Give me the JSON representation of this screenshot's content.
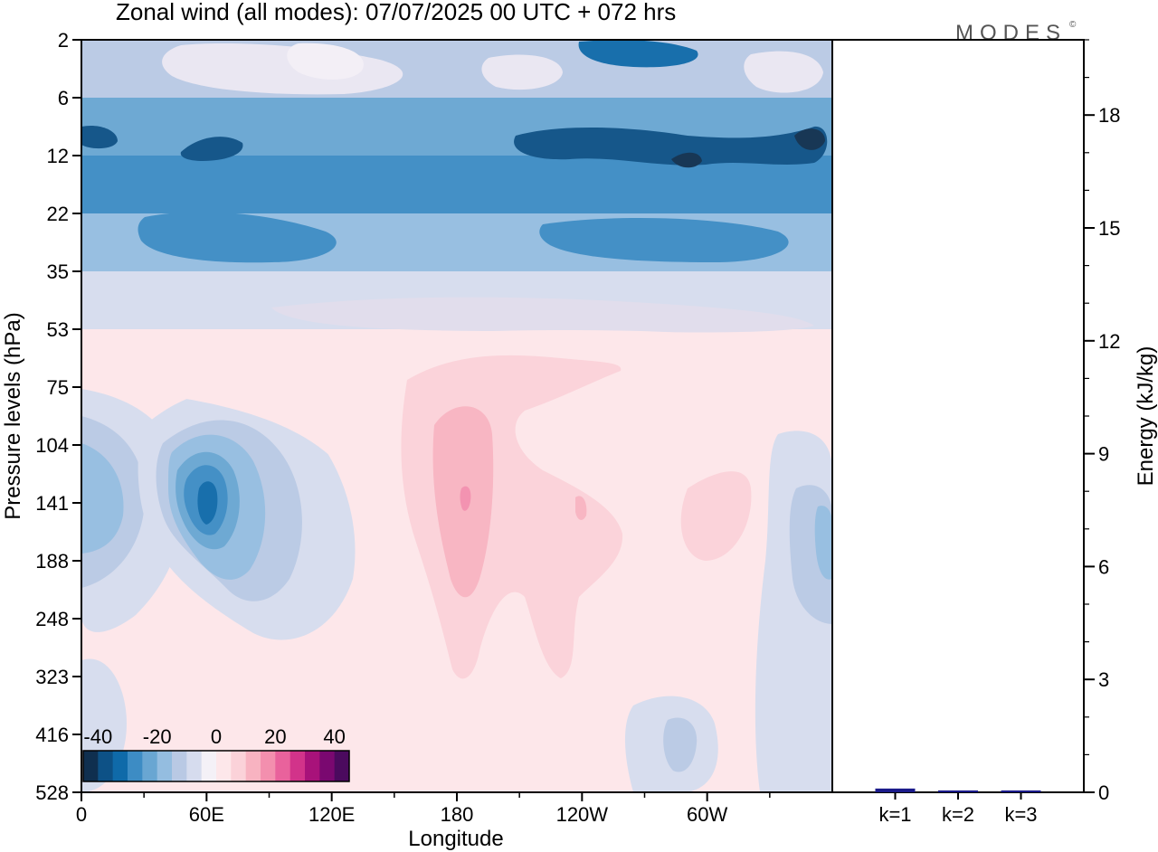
{
  "title": "Zonal wind (all modes):  07/07/2025  00 UTC  + 072 hrs",
  "brand": "MODES",
  "brand_mark": "©",
  "chart_data": [
    {
      "type": "heatmap",
      "name": "zonal-wind-cross-section",
      "xlabel": "Longitude",
      "ylabel": "Pressure levels (hPa)",
      "xticks": [
        {
          "lon": 0,
          "label": "0"
        },
        {
          "lon": 60,
          "label": "60E"
        },
        {
          "lon": 120,
          "label": "120E"
        },
        {
          "lon": 180,
          "label": "180"
        },
        {
          "lon": 240,
          "label": "120W"
        },
        {
          "lon": 300,
          "label": "60W"
        }
      ],
      "xlim": [
        0,
        360
      ],
      "yticks": [
        2,
        6,
        12,
        22,
        35,
        53,
        75,
        104,
        141,
        188,
        248,
        323,
        416,
        528
      ],
      "colorbar": {
        "labels": [
          "-40",
          "-20",
          "0",
          "20",
          "40"
        ],
        "levels": [
          -40,
          -35,
          -30,
          -25,
          -20,
          -15,
          -10,
          -5,
          0,
          5,
          10,
          15,
          20,
          25,
          30,
          35,
          40
        ],
        "colors": [
          "#0f2f4f",
          "#0d5186",
          "#0f6aa9",
          "#3d8cc4",
          "#69a6d2",
          "#94bde0",
          "#b9c9e4",
          "#d6dcee",
          "#f4f1f7",
          "#fde7ea",
          "#fbd2d9",
          "#f8b3c1",
          "#f38fae",
          "#e9629c",
          "#d2338a",
          "#a8127a",
          "#7a0870",
          "#4b0a5e"
        ]
      },
      "field_bands": [
        {
          "level_from": 2,
          "level_to": 6,
          "value": -12
        },
        {
          "level_from": 6,
          "level_to": 12,
          "value": -25
        },
        {
          "level_from": 12,
          "level_to": 22,
          "value": -28
        },
        {
          "level_from": 22,
          "level_to": 35,
          "value": -18
        },
        {
          "level_from": 35,
          "level_to": 53,
          "value": -8
        },
        {
          "level_from": 53,
          "level_to": 528,
          "value": 0
        }
      ]
    },
    {
      "type": "bar",
      "name": "energy-bars",
      "categories": [
        "k=1",
        "k=2",
        "k=3"
      ],
      "values": [
        0.1,
        0.05,
        0.05
      ],
      "ylabel": "Energy (kJ/kg)",
      "ylim": [
        0,
        20
      ],
      "yticks": [
        0,
        3,
        6,
        9,
        12,
        15,
        18
      ],
      "bar_color": "#1a1a8a"
    }
  ]
}
